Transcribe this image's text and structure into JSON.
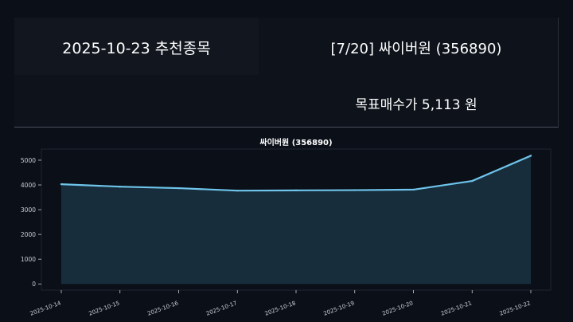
{
  "header": {
    "date_title": "2025-10-23 추천종목",
    "stock_title": "[7/20] 싸이버원 (356890)",
    "target_price_label": "목표매수가 5,113 원"
  },
  "colors": {
    "background": "#0b0f18",
    "line": "#6ec4ea",
    "fill": "#1a3140",
    "axis_text": "#c9ccd3"
  },
  "chart_data": {
    "type": "area",
    "title": "싸이버원 (356890)",
    "xlabel": "",
    "ylabel": "",
    "categories": [
      "2025-10-14",
      "2025-10-15",
      "2025-10-16",
      "2025-10-17",
      "2025-10-18",
      "2025-10-19",
      "2025-10-20",
      "2025-10-21",
      "2025-10-22"
    ],
    "series": [
      {
        "values": [
          4030,
          3930,
          3870,
          3770,
          3780,
          3790,
          3810,
          4160,
          5180
        ]
      }
    ],
    "yticks": [
      0,
      1000,
      2000,
      3000,
      4000,
      5000
    ],
    "ylim": [
      -250,
      5450
    ],
    "grid": false,
    "legend": "none"
  }
}
